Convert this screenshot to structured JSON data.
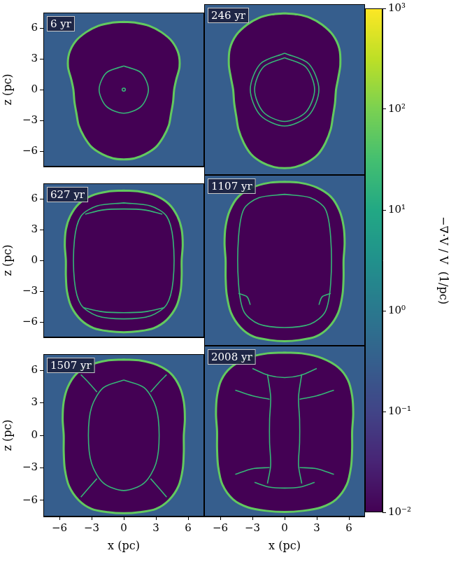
{
  "chart_data": {
    "type": "heatmap",
    "xlabel": "x (pc)",
    "ylabel": "z (pc)",
    "xlim": [
      -7.5,
      7.5
    ],
    "ylim": [
      -7.5,
      7.5
    ],
    "xticks": [
      {
        "value": -6,
        "label": "−6"
      },
      {
        "value": -3,
        "label": "−3"
      },
      0,
      3,
      6
    ],
    "yticks": [
      {
        "value": -6,
        "label": "−6"
      },
      {
        "value": -3,
        "label": "−3"
      },
      0,
      3,
      6
    ],
    "colorbar": {
      "label": "−∇·V / V  (1/pc)",
      "log": true,
      "range": [
        0.01,
        1000
      ],
      "ticks": [
        {
          "value": 0.01,
          "label": "10⁻²"
        },
        {
          "value": 0.1,
          "label": "10⁻¹"
        },
        {
          "value": 1,
          "label": "10⁰"
        },
        {
          "value": 10,
          "label": "10¹"
        },
        {
          "value": 100,
          "label": "10²"
        },
        {
          "value": 1000,
          "label": "10³"
        }
      ]
    },
    "panels": [
      {
        "title": "6 yr",
        "background": 0.3,
        "fronts": [
          {
            "value": 60,
            "inside": 0.01,
            "x": [
              0,
              1.2,
              2.4,
              3.5,
              4.5,
              5.1,
              5.2,
              4.9,
              4.7,
              4.6,
              4.4,
              4.2,
              3.7,
              3.0,
              2.0,
              1.0,
              0,
              -1.0,
              -2.0,
              -3.0,
              -3.7,
              -4.2,
              -4.4,
              -4.6,
              -4.7,
              -4.9,
              -5.2,
              -5.1,
              -4.5,
              -3.5,
              -2.4,
              -1.2,
              0
            ],
            "z": [
              6.6,
              6.5,
              6.2,
              5.6,
              4.7,
              3.5,
              2.2,
              1.0,
              0,
              -1.2,
              -2.4,
              -3.5,
              -4.6,
              -5.6,
              -6.3,
              -6.7,
              -6.8,
              -6.7,
              -6.3,
              -5.6,
              -4.6,
              -3.5,
              -2.4,
              -1.2,
              0,
              1.0,
              2.2,
              3.5,
              4.7,
              5.6,
              6.2,
              6.5,
              6.6
            ]
          },
          {
            "value": 20,
            "x": [
              0,
              1.63,
              2.3,
              1.63,
              0,
              -1.63,
              -2.3,
              -1.63,
              0
            ],
            "z": [
              2.3,
              1.63,
              0,
              -1.63,
              -2.3,
              -1.63,
              0,
              1.63,
              2.3
            ]
          },
          {
            "value": 20,
            "x": [
              0,
              0.11,
              0.15,
              0.11,
              0,
              -0.11,
              -0.15,
              -0.11,
              0
            ],
            "z": [
              0.15,
              0.11,
              0,
              -0.11,
              -0.15,
              -0.11,
              0,
              0.11,
              0.15
            ]
          }
        ]
      },
      {
        "title": "246 yr",
        "background": 0.3,
        "fronts": [
          {
            "value": 60,
            "inside": 0.01,
            "x": [
              0,
              1.2,
              2.4,
              3.5,
              4.5,
              5.1,
              5.2,
              5.0,
              4.8,
              4.7,
              4.5,
              4.3,
              3.8,
              3.1,
              2.1,
              1.0,
              0,
              -1.0,
              -2.1,
              -3.1,
              -3.8,
              -4.3,
              -4.5,
              -4.7,
              -4.8,
              -5.0,
              -5.2,
              -5.1,
              -4.5,
              -3.5,
              -2.4,
              -1.2,
              0
            ],
            "z": [
              6.7,
              6.6,
              6.3,
              5.7,
              4.8,
              3.6,
              2.2,
              1.0,
              0,
              -1.2,
              -2.4,
              -3.5,
              -4.7,
              -5.7,
              -6.4,
              -6.8,
              -6.9,
              -6.8,
              -6.4,
              -5.7,
              -4.7,
              -3.5,
              -2.4,
              -1.2,
              0,
              1.0,
              2.2,
              3.6,
              4.8,
              5.7,
              6.3,
              6.6,
              6.7
            ]
          },
          {
            "value": 20,
            "x": [
              0,
              1.98,
              2.8,
              1.98,
              0,
              -1.98,
              -2.8,
              -1.98,
              0
            ],
            "z": [
              2.8,
              1.98,
              0,
              -1.98,
              -2.8,
              -1.98,
              0,
              1.98,
              2.8
            ]
          },
          {
            "value": 20,
            "x": [
              0,
              2.26,
              3.2,
              2.26,
              0,
              -2.26,
              -3.2,
              -2.26,
              0
            ],
            "z": [
              3.2,
              2.26,
              0,
              -2.26,
              -3.2,
              -2.26,
              0,
              2.26,
              3.2
            ]
          }
        ]
      },
      {
        "title": "627 yr",
        "background": 0.3,
        "fronts": [
          {
            "value": 60,
            "inside": 0.01,
            "x": [
              0,
              1.5,
              3.0,
              4.2,
              5.0,
              5.4,
              5.5,
              5.4,
              5.4,
              5.3,
              4.9,
              4.0,
              2.8,
              1.4,
              0,
              -1.4,
              -2.8,
              -4.0,
              -4.9,
              -5.3,
              -5.4,
              -5.4,
              -5.5,
              -5.4,
              -5.0,
              -4.2,
              -3.0,
              -1.5,
              0
            ],
            "z": [
              6.8,
              6.7,
              6.3,
              5.5,
              4.3,
              3.0,
              1.5,
              0,
              -1.5,
              -3.0,
              -4.5,
              -5.8,
              -6.6,
              -6.9,
              -7.0,
              -6.9,
              -6.6,
              -5.8,
              -4.5,
              -3.0,
              -1.5,
              0,
              1.5,
              3.0,
              4.3,
              5.5,
              6.3,
              6.7,
              6.8
            ]
          },
          {
            "value": 20,
            "x": [
              0,
              2.5,
              4.0,
              4.6,
              4.6,
              4.0,
              2.5,
              0,
              -2.5,
              -4.0,
              -4.6,
              -4.6,
              -4.0,
              -2.5,
              0
            ],
            "z": [
              5.6,
              5.3,
              4.3,
              2.0,
              -2.0,
              -4.3,
              -5.4,
              -5.7,
              -5.4,
              -4.3,
              -2.0,
              2.0,
              4.3,
              5.3,
              5.6
            ]
          },
          {
            "value": 20,
            "x": [
              -3.6,
              -2.0,
              0,
              2.0,
              3.6
            ],
            "z": [
              4.5,
              4.9,
              5.0,
              4.9,
              4.5
            ]
          },
          {
            "value": 20,
            "x": [
              -3.8,
              -2.0,
              0,
              2.0,
              3.8
            ],
            "z": [
              -4.6,
              -5.0,
              -5.1,
              -5.0,
              -4.6
            ]
          }
        ]
      },
      {
        "title": "1107 yr",
        "background": 0.3,
        "fronts": [
          {
            "value": 60,
            "inside": 0.01,
            "x": [
              0,
              1.5,
              3.0,
              4.3,
              5.1,
              5.5,
              5.6,
              5.5,
              5.5,
              5.4,
              5.0,
              4.1,
              2.9,
              1.4,
              0,
              -1.4,
              -2.9,
              -4.1,
              -5.0,
              -5.4,
              -5.5,
              -5.5,
              -5.6,
              -5.5,
              -5.1,
              -4.3,
              -3.0,
              -1.5,
              0
            ],
            "z": [
              6.9,
              6.8,
              6.4,
              5.6,
              4.4,
              3.0,
              1.5,
              0,
              -1.5,
              -3.0,
              -4.6,
              -5.9,
              -6.7,
              -7.0,
              -7.1,
              -7.0,
              -6.7,
              -5.9,
              -4.6,
              -3.0,
              -1.5,
              0,
              1.5,
              3.0,
              4.4,
              5.6,
              6.4,
              6.8,
              6.9
            ]
          },
          {
            "value": 20,
            "x": [
              0,
              2.4,
              3.8,
              4.3,
              4.3,
              3.8,
              2.4,
              0,
              -2.4,
              -3.8,
              -4.3,
              -4.3,
              -3.8,
              -2.4,
              0
            ],
            "z": [
              5.8,
              5.5,
              4.5,
              2.0,
              -2.0,
              -4.5,
              -5.6,
              -5.9,
              -5.6,
              -4.5,
              -2.0,
              2.0,
              4.5,
              5.5,
              5.8
            ]
          },
          {
            "value": 20,
            "x": [
              -4.3,
              -3.5,
              -3.2
            ],
            "z": [
              -2.9,
              -3.2,
              -3.9
            ]
          },
          {
            "value": 20,
            "x": [
              4.3,
              3.5,
              3.2
            ],
            "z": [
              -2.9,
              -3.2,
              -3.9
            ]
          }
        ]
      },
      {
        "title": "1507 yr",
        "background": 0.3,
        "fronts": [
          {
            "value": 60,
            "inside": 0.01,
            "x": [
              0,
              1.6,
              3.1,
              4.4,
              5.2,
              5.6,
              5.7,
              5.6,
              5.6,
              5.5,
              5.1,
              4.2,
              3.0,
              1.5,
              0,
              -1.5,
              -3.0,
              -4.2,
              -5.1,
              -5.5,
              -5.6,
              -5.6,
              -5.7,
              -5.6,
              -5.2,
              -4.4,
              -3.1,
              -1.6,
              0
            ],
            "z": [
              7.0,
              6.9,
              6.5,
              5.7,
              4.5,
              3.1,
              1.5,
              0,
              -1.5,
              -3.1,
              -4.7,
              -6.0,
              -6.8,
              -7.1,
              -7.2,
              -7.1,
              -6.8,
              -6.0,
              -4.7,
              -3.1,
              -1.5,
              0,
              1.5,
              3.1,
              4.5,
              5.7,
              6.5,
              6.9,
              7.0
            ]
          },
          {
            "value": 20,
            "x": [
              0,
              1.9,
              3.0,
              3.3,
              3.0,
              1.9,
              0,
              -1.9,
              -3.0,
              -3.3,
              -3.0,
              -1.9,
              0
            ],
            "z": [
              5.1,
              4.4,
              2.6,
              0,
              -2.6,
              -4.4,
              -5.1,
              -4.4,
              -2.6,
              0,
              2.6,
              4.4,
              5.1
            ]
          },
          {
            "value": 20,
            "x": [
              2.5,
              3.3,
              4.0
            ],
            "z": [
              4.0,
              4.9,
              5.6
            ]
          },
          {
            "value": 20,
            "x": [
              -2.5,
              -3.3,
              -4.0
            ],
            "z": [
              4.0,
              4.9,
              5.6
            ]
          },
          {
            "value": 20,
            "x": [
              2.5,
              3.3,
              4.0
            ],
            "z": [
              -4.0,
              -4.9,
              -5.7
            ]
          },
          {
            "value": 20,
            "x": [
              -2.5,
              -3.3,
              -4.0
            ],
            "z": [
              -4.0,
              -4.9,
              -5.7
            ]
          }
        ]
      },
      {
        "title": "2008 yr",
        "background": 0.3,
        "fronts": [
          {
            "value": 60,
            "inside": 0.01,
            "x": [
              0,
              1.8,
              3.5,
              5.0,
              5.9,
              6.3,
              6.4,
              6.3,
              6.3,
              6.2,
              5.8,
              4.8,
              3.4,
              1.7,
              0,
              -1.7,
              -3.4,
              -4.8,
              -5.8,
              -6.2,
              -6.3,
              -6.3,
              -6.4,
              -6.3,
              -5.9,
              -5.0,
              -3.5,
              -1.8,
              0
            ],
            "z": [
              6.9,
              6.8,
              6.4,
              5.6,
              4.5,
              3.1,
              1.5,
              0,
              -1.5,
              -3.1,
              -4.7,
              -6.0,
              -6.7,
              -7.0,
              -7.1,
              -7.0,
              -6.7,
              -6.0,
              -4.7,
              -3.1,
              -1.5,
              0,
              1.5,
              3.1,
              4.5,
              5.6,
              6.4,
              6.8,
              6.9
            ]
          },
          {
            "value": 20,
            "x": [
              1.6,
              1.3,
              1.4,
              1.4,
              1.3,
              1.6
            ],
            "z": [
              5.0,
              3.0,
              1.0,
              -1.0,
              -3.0,
              -4.6
            ]
          },
          {
            "value": 20,
            "x": [
              -1.6,
              -1.3,
              -1.4,
              -1.4,
              -1.3,
              -1.6
            ],
            "z": [
              5.0,
              3.0,
              1.0,
              -1.0,
              -3.0,
              -4.6
            ]
          },
          {
            "value": 20,
            "x": [
              -3.0,
              -1.5,
              0,
              1.5,
              3.0
            ],
            "z": [
              5.5,
              4.9,
              4.7,
              4.9,
              5.5
            ]
          },
          {
            "value": 20,
            "x": [
              -2.8,
              -1.5,
              0,
              1.5,
              2.8
            ],
            "z": [
              -4.5,
              -4.9,
              -5.0,
              -4.9,
              -4.5
            ]
          },
          {
            "value": 20,
            "x": [
              1.4,
              3.0,
              4.6
            ],
            "z": [
              2.8,
              3.1,
              3.6
            ]
          },
          {
            "value": 20,
            "x": [
              -1.4,
              -3.0,
              -4.6
            ],
            "z": [
              2.8,
              3.1,
              3.6
            ]
          },
          {
            "value": 20,
            "x": [
              1.4,
              3.0,
              4.6
            ],
            "z": [
              -3.2,
              -3.3,
              -3.8
            ]
          },
          {
            "value": 20,
            "x": [
              -1.4,
              -3.0,
              -4.6
            ],
            "z": [
              -3.2,
              -3.3,
              -3.8
            ]
          }
        ]
      }
    ]
  }
}
